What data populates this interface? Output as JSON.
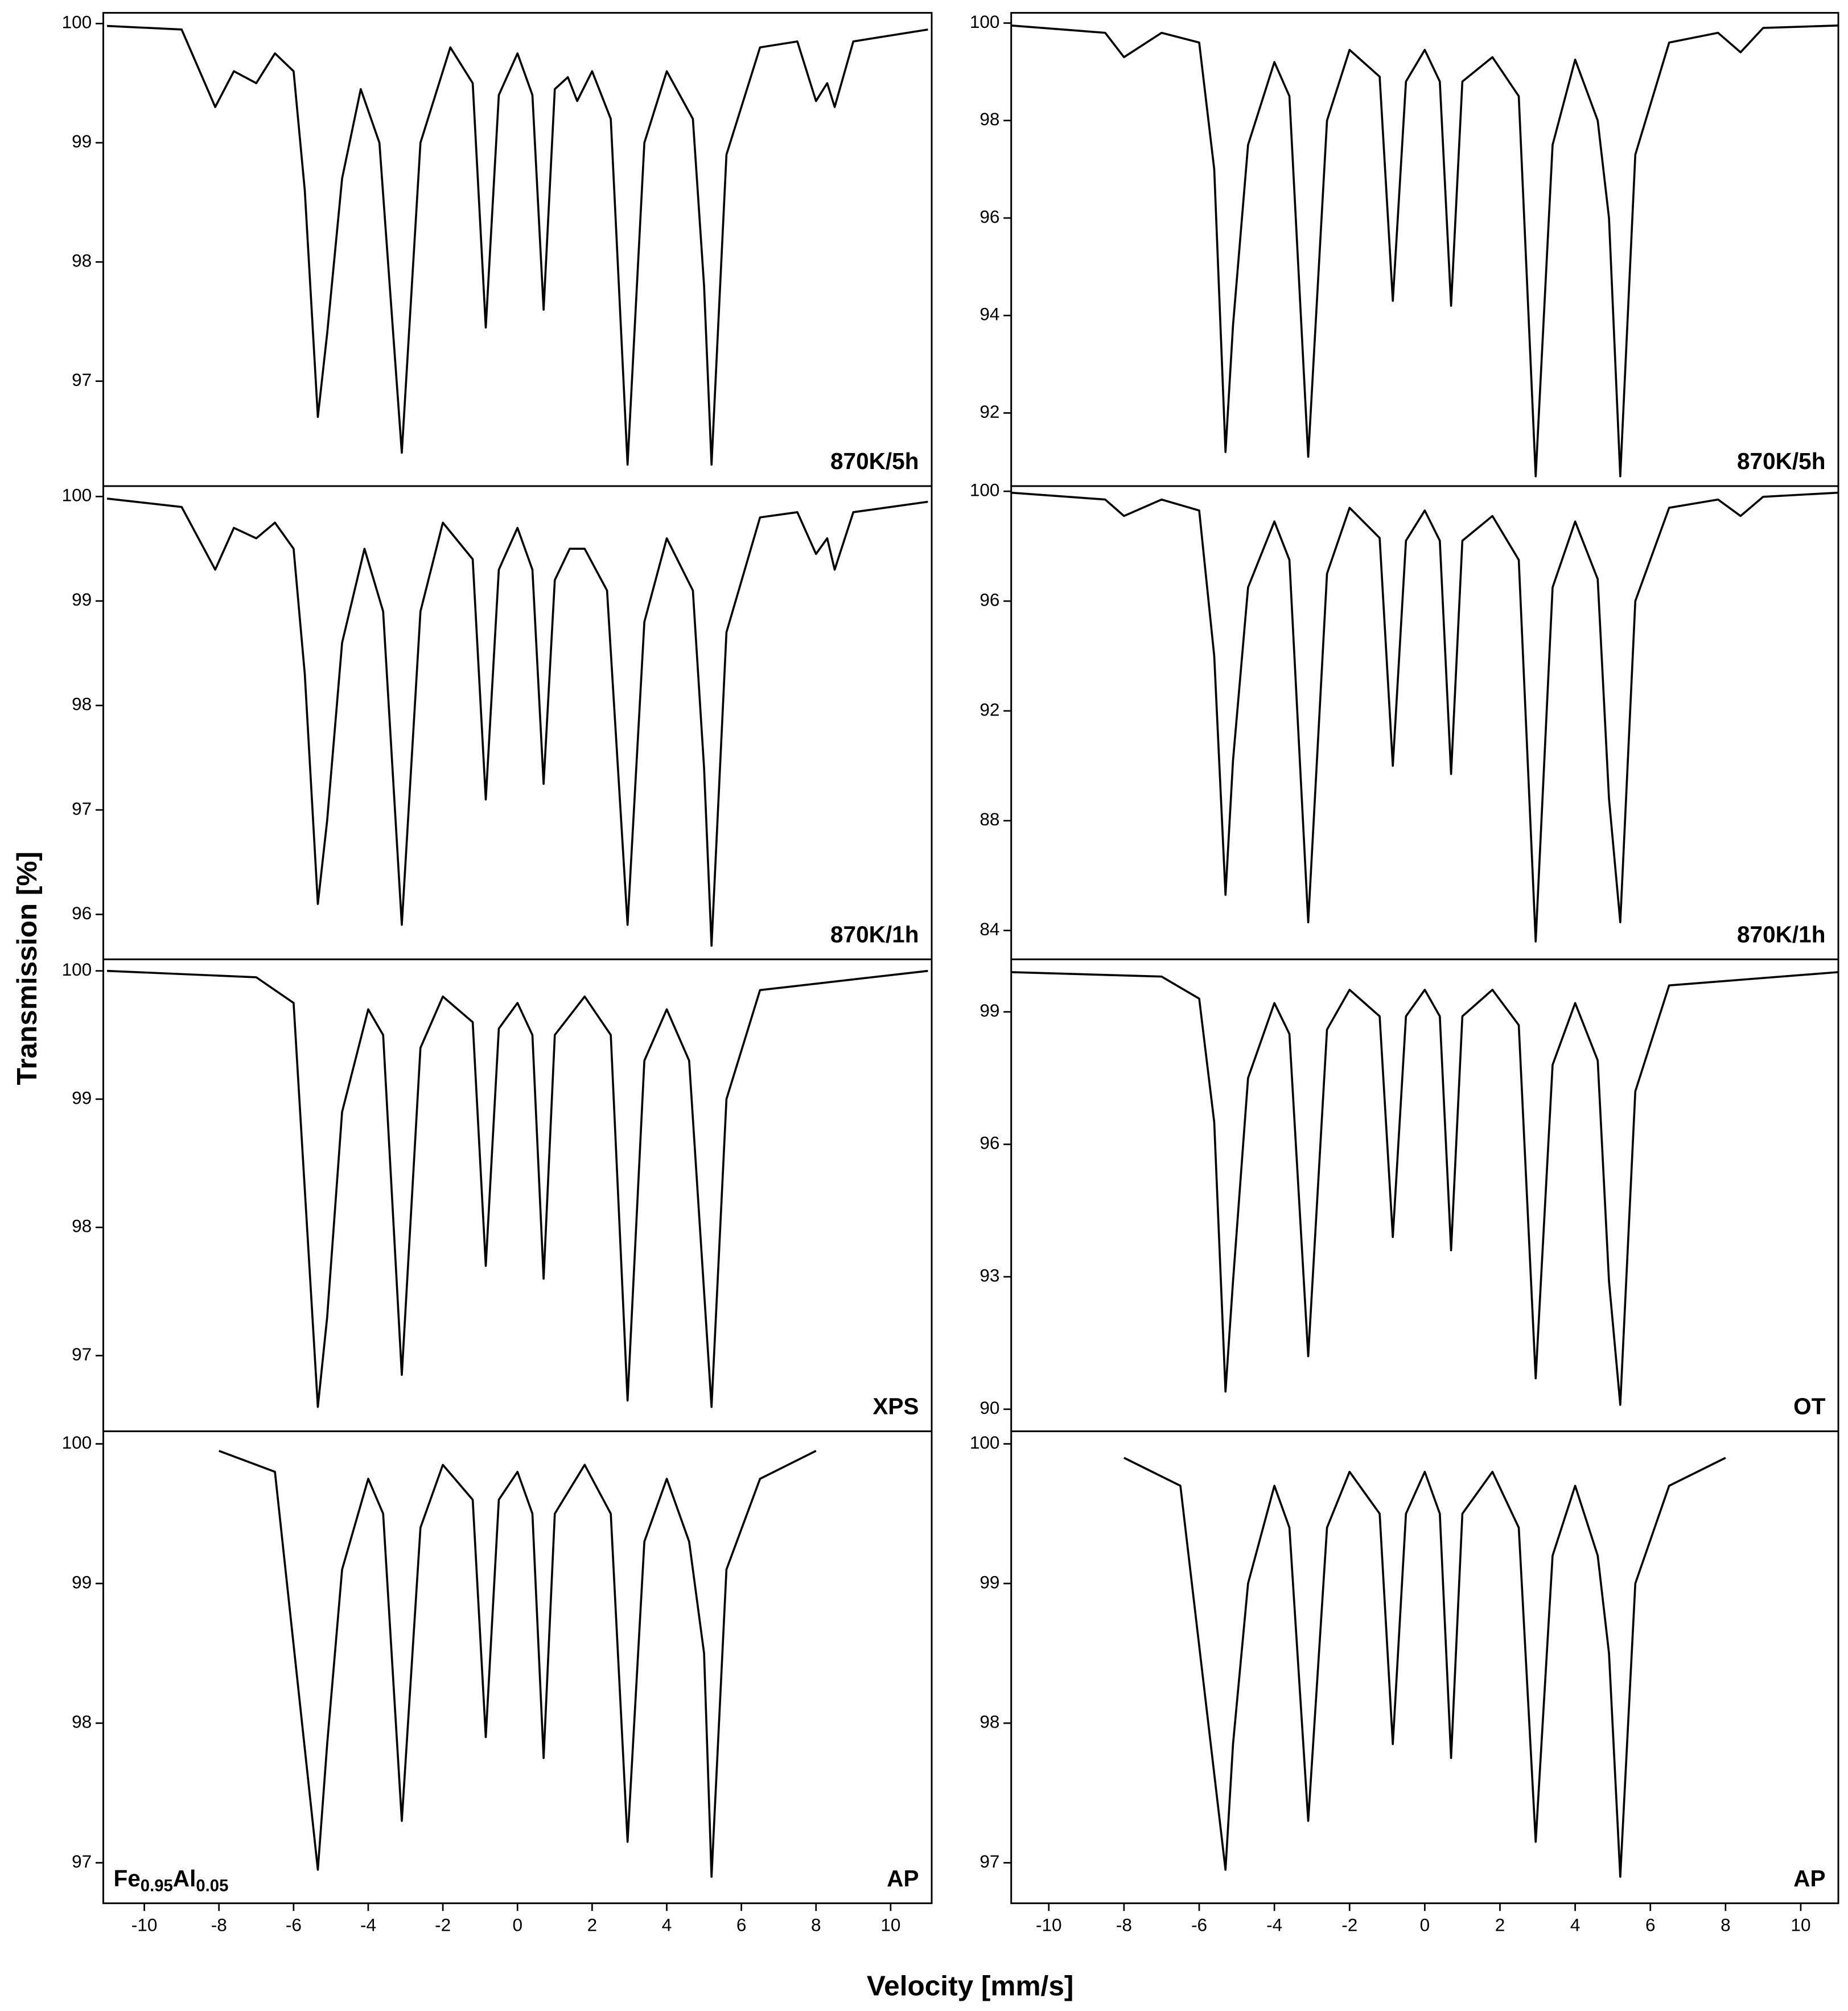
{
  "figure": {
    "xlabel": "Velocity [mm/s]",
    "ylabel": "Transmission [%]"
  },
  "chart_data": [
    {
      "type": "line",
      "annotation": "870K/5h",
      "x": [
        -11,
        -9,
        -8.1,
        -7.6,
        -7,
        -6.5,
        -6,
        -5.7,
        -5.35,
        -5.1,
        -4.7,
        -4.2,
        -3.7,
        -3.1,
        -2.6,
        -1.8,
        -1.2,
        -0.85,
        -0.5,
        0,
        0.4,
        0.7,
        1,
        1.35,
        1.6,
        2,
        2.5,
        2.95,
        3.4,
        4,
        4.7,
        5,
        5.2,
        5.6,
        6.5,
        7.5,
        8,
        8.3,
        8.5,
        9,
        11
      ],
      "series": [
        {
          "color": "#000000",
          "values": [
            99.98,
            99.95,
            99.3,
            99.6,
            99.5,
            99.75,
            99.6,
            98.6,
            96.7,
            97.4,
            98.7,
            99.45,
            99.0,
            96.4,
            99.0,
            99.8,
            99.5,
            97.45,
            99.4,
            99.75,
            99.4,
            97.6,
            99.45,
            99.55,
            99.35,
            99.6,
            99.2,
            96.3,
            99.0,
            99.6,
            99.2,
            97.8,
            96.3,
            98.9,
            99.8,
            99.85,
            99.35,
            99.5,
            99.3,
            99.85,
            99.95
          ]
        }
      ],
      "xlim": [
        -11.1,
        11.1
      ],
      "ylim": [
        96.12,
        100.09
      ],
      "yticks": [
        97,
        98,
        99,
        100
      ]
    },
    {
      "type": "line",
      "annotation": "870K/5h",
      "x": [
        -11,
        -8.5,
        -8,
        -7,
        -6,
        -5.6,
        -5.3,
        -5.1,
        -4.7,
        -4,
        -3.6,
        -3.1,
        -2.6,
        -2,
        -1.2,
        -0.85,
        -0.5,
        0,
        0.4,
        0.7,
        1,
        1.8,
        2.5,
        2.95,
        3.4,
        4,
        4.6,
        4.9,
        5.2,
        5.6,
        6.5,
        7.8,
        8.4,
        9,
        11
      ],
      "series": [
        {
          "color": "#000000",
          "values": [
            99.95,
            99.8,
            99.3,
            99.8,
            99.6,
            97,
            91.2,
            93.8,
            97.5,
            99.2,
            98.5,
            91.1,
            98,
            99.45,
            98.9,
            94.3,
            98.8,
            99.45,
            98.8,
            94.2,
            98.8,
            99.3,
            98.5,
            90.7,
            97.5,
            99.25,
            98,
            96,
            90.7,
            97.3,
            99.6,
            99.8,
            99.4,
            99.9,
            99.95
          ]
        }
      ],
      "xlim": [
        -11,
        11
      ],
      "ylim": [
        90.5,
        100.21
      ],
      "yticks": [
        92,
        94,
        96,
        98,
        100
      ]
    },
    {
      "type": "line",
      "annotation": "870K/1h",
      "x": [
        -11,
        -9,
        -8.1,
        -7.6,
        -7,
        -6.5,
        -6,
        -5.7,
        -5.35,
        -5.1,
        -4.7,
        -4.1,
        -3.6,
        -3.1,
        -2.6,
        -2,
        -1.2,
        -0.85,
        -0.5,
        0,
        0.4,
        0.7,
        1,
        1.4,
        1.8,
        2.4,
        2.95,
        3.4,
        4,
        4.7,
        5,
        5.2,
        5.6,
        6.5,
        7.5,
        8,
        8.3,
        8.5,
        9,
        11
      ],
      "series": [
        {
          "color": "#000000",
          "values": [
            99.98,
            99.9,
            99.3,
            99.7,
            99.6,
            99.75,
            99.5,
            98.3,
            96.1,
            96.9,
            98.6,
            99.5,
            98.9,
            95.9,
            98.9,
            99.75,
            99.4,
            97.1,
            99.3,
            99.7,
            99.3,
            97.25,
            99.2,
            99.5,
            99.5,
            99.1,
            95.9,
            98.8,
            99.6,
            99.1,
            97.4,
            95.7,
            98.7,
            99.8,
            99.85,
            99.45,
            99.6,
            99.3,
            99.85,
            99.95
          ]
        }
      ],
      "xlim": [
        -11.1,
        11.1
      ],
      "ylim": [
        95.57,
        100.1
      ],
      "yticks": [
        96,
        97,
        98,
        99,
        100
      ]
    },
    {
      "type": "line",
      "annotation": "870K/1h",
      "x": [
        -11,
        -8.5,
        -8,
        -7,
        -6,
        -5.6,
        -5.3,
        -5.1,
        -4.7,
        -4,
        -3.6,
        -3.1,
        -2.6,
        -2,
        -1.2,
        -0.85,
        -0.5,
        0,
        0.4,
        0.7,
        1,
        1.8,
        2.5,
        2.95,
        3.4,
        4,
        4.6,
        4.9,
        5.2,
        5.6,
        6.5,
        7.8,
        8.4,
        9,
        11
      ],
      "series": [
        {
          "color": "#000000",
          "values": [
            99.95,
            99.7,
            99.1,
            99.7,
            99.3,
            94,
            85.3,
            90.2,
            96.5,
            98.9,
            97.5,
            84.3,
            97,
            99.4,
            98.3,
            90,
            98.2,
            99.3,
            98.2,
            89.7,
            98.2,
            99.1,
            97.5,
            83.6,
            96.5,
            98.9,
            96.8,
            88.8,
            84.3,
            96,
            99.4,
            99.7,
            99.1,
            99.8,
            99.95
          ]
        }
      ],
      "xlim": [
        -11,
        11
      ],
      "ylim": [
        82.95,
        100.19
      ],
      "yticks": [
        84,
        88,
        92,
        96,
        100
      ]
    },
    {
      "type": "line",
      "annotation": "XPS",
      "x": [
        -11,
        -7,
        -6,
        -5.35,
        -5.1,
        -4.7,
        -4,
        -3.6,
        -3.1,
        -2.6,
        -2,
        -1.2,
        -0.85,
        -0.5,
        0,
        0.4,
        0.7,
        1,
        1.8,
        2.5,
        2.95,
        3.4,
        4,
        4.6,
        5,
        5.2,
        5.6,
        6.5,
        11
      ],
      "series": [
        {
          "color": "#000000",
          "values": [
            100,
            99.95,
            99.75,
            96.6,
            97.3,
            98.9,
            99.7,
            99.5,
            96.85,
            99.4,
            99.8,
            99.6,
            97.7,
            99.55,
            99.75,
            99.5,
            97.6,
            99.5,
            99.8,
            99.5,
            96.65,
            99.3,
            99.7,
            99.3,
            97.5,
            96.6,
            99.0,
            99.85,
            100
          ]
        }
      ],
      "xlim": [
        -11.1,
        11.1
      ],
      "ylim": [
        96.41,
        100.09
      ],
      "yticks": [
        97,
        98,
        99,
        100
      ]
    },
    {
      "type": "line",
      "annotation": "OT",
      "x": [
        -11,
        -7,
        -6,
        -5.6,
        -5.3,
        -5.1,
        -4.7,
        -4,
        -3.6,
        -3.1,
        -2.6,
        -2,
        -1.2,
        -0.85,
        -0.5,
        0,
        0.4,
        0.7,
        1,
        1.8,
        2.5,
        2.95,
        3.4,
        4,
        4.6,
        4.9,
        5.2,
        5.6,
        6.5,
        11
      ],
      "series": [
        {
          "color": "#000000",
          "values": [
            99.9,
            99.8,
            99.3,
            96.5,
            90.4,
            92.9,
            97.5,
            99.2,
            98.5,
            91.2,
            98.6,
            99.5,
            98.9,
            93.9,
            98.9,
            99.5,
            98.9,
            93.6,
            98.9,
            99.5,
            98.7,
            90.7,
            97.8,
            99.2,
            97.9,
            92.9,
            90.1,
            97.2,
            99.6,
            99.9
          ]
        }
      ],
      "xlim": [
        -11,
        11
      ],
      "ylim": [
        89.5,
        100.19
      ],
      "yticks": [
        90,
        93,
        96,
        99
      ]
    },
    {
      "type": "line",
      "annotation": "AP",
      "formula": [
        "Fe",
        "0.95",
        "Al",
        "0.05"
      ],
      "x": [
        -8,
        -6.5,
        -5.35,
        -5.1,
        -4.7,
        -4,
        -3.6,
        -3.1,
        -2.6,
        -2,
        -1.2,
        -0.85,
        -0.5,
        0,
        0.4,
        0.7,
        1,
        1.8,
        2.5,
        2.95,
        3.4,
        4,
        4.6,
        5,
        5.2,
        5.6,
        6.5,
        8
      ],
      "series": [
        {
          "color": "#000000",
          "values": [
            99.95,
            99.8,
            96.95,
            97.85,
            99.1,
            99.75,
            99.5,
            97.3,
            99.4,
            99.85,
            99.6,
            97.9,
            99.6,
            99.8,
            99.5,
            97.75,
            99.5,
            99.85,
            99.5,
            97.15,
            99.3,
            99.75,
            99.3,
            98.5,
            96.9,
            99.1,
            99.75,
            99.95
          ]
        }
      ],
      "xlim": [
        -11.1,
        11.1
      ],
      "ylim": [
        96.71,
        100.09
      ],
      "yticks": [
        97,
        98,
        99,
        100
      ],
      "xticks": [
        -10,
        -8,
        -6,
        -4,
        -2,
        0,
        2,
        4,
        6,
        8,
        10
      ]
    },
    {
      "type": "line",
      "annotation": "AP",
      "x": [
        -8,
        -6.5,
        -5.3,
        -5.1,
        -4.7,
        -4,
        -3.6,
        -3.1,
        -2.6,
        -2,
        -1.2,
        -0.85,
        -0.5,
        0,
        0.4,
        0.7,
        1,
        1.8,
        2.5,
        2.95,
        3.4,
        4,
        4.6,
        4.9,
        5.2,
        5.6,
        6.5,
        8
      ],
      "series": [
        {
          "color": "#000000",
          "values": [
            99.9,
            99.7,
            96.95,
            97.85,
            99.0,
            99.7,
            99.4,
            97.3,
            99.4,
            99.8,
            99.5,
            97.85,
            99.5,
            99.8,
            99.5,
            97.75,
            99.5,
            99.8,
            99.4,
            97.15,
            99.2,
            99.7,
            99.2,
            98.5,
            96.9,
            99.0,
            99.7,
            99.9
          ]
        }
      ],
      "xlim": [
        -11,
        11
      ],
      "ylim": [
        96.71,
        100.09
      ],
      "yticks": [
        97,
        98,
        99,
        100
      ],
      "xticks": [
        -10,
        -8,
        -6,
        -4,
        -2,
        0,
        2,
        4,
        6,
        8,
        10
      ]
    }
  ]
}
